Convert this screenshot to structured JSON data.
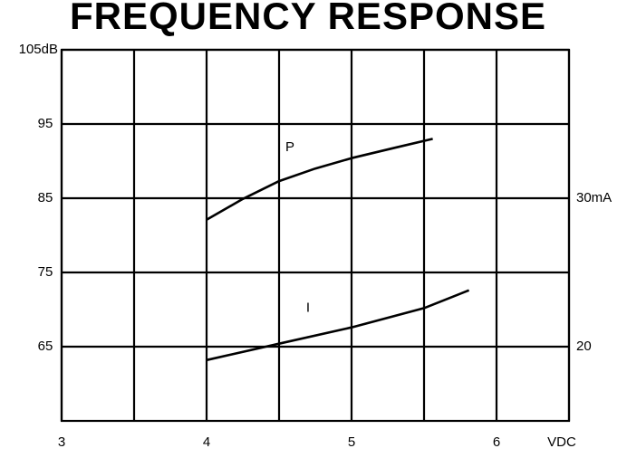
{
  "chart_data": {
    "type": "line",
    "title": "FREQUENCY RESPONSE",
    "x_unit": "VDC",
    "xlim": [
      3,
      6.5
    ],
    "xticks": [
      3,
      4,
      5,
      6
    ],
    "x_grid": [
      3.5,
      4.5,
      5.5,
      6.5
    ],
    "ylim": [
      55,
      105
    ],
    "yticks": [
      65,
      75,
      85,
      95,
      {
        "value": 105,
        "label": "105dB"
      }
    ],
    "y2lim": [
      15,
      40
    ],
    "y2ticks": [
      {
        "value": 30,
        "label": "30mA"
      },
      20
    ],
    "grid": true,
    "series": [
      {
        "name": "P",
        "color": "#000000",
        "x": [
          4.0,
          4.25,
          4.5,
          4.75,
          5.0,
          5.3,
          5.56
        ],
        "values": [
          82.1,
          84.9,
          87.3,
          89.0,
          90.4,
          91.8,
          93.0
        ]
      },
      {
        "name": "I",
        "color": "#000000",
        "axis": "y2",
        "x": [
          4.0,
          4.5,
          5.0,
          5.5,
          5.81
        ],
        "values": [
          19.1,
          20.2,
          21.3,
          22.6,
          23.8
        ]
      }
    ]
  }
}
